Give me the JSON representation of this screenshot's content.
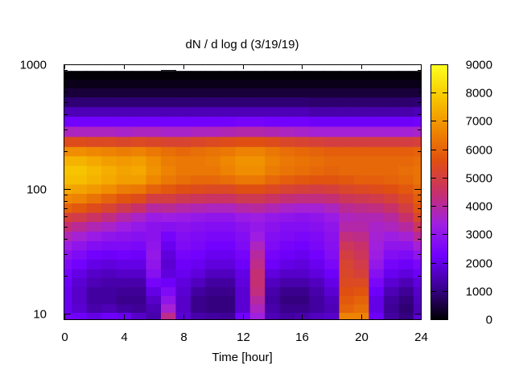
{
  "chart_data": {
    "type": "heatmap",
    "title": "dN / d log d (3/19/19)",
    "xlabel": "Time [hour]",
    "ylabel": "",
    "xlim": [
      0,
      24
    ],
    "ylim": [
      9,
      1000
    ],
    "y_scale": "log",
    "x_ticks": [
      {
        "value": 0,
        "label": "0"
      },
      {
        "value": 4,
        "label": "4"
      },
      {
        "value": 8,
        "label": "8"
      },
      {
        "value": 12,
        "label": "12"
      },
      {
        "value": 16,
        "label": "16"
      },
      {
        "value": 20,
        "label": "20"
      },
      {
        "value": 24,
        "label": "24"
      }
    ],
    "y_ticks": [
      {
        "value": 10,
        "label": "10"
      },
      {
        "value": 100,
        "label": "100"
      },
      {
        "value": 1000,
        "label": "1000"
      }
    ],
    "colorbar": {
      "range": [
        0,
        9000
      ],
      "ticks": [
        {
          "value": 0,
          "label": "0"
        },
        {
          "value": 1000,
          "label": "1000"
        },
        {
          "value": 2000,
          "label": "2000"
        },
        {
          "value": 3000,
          "label": "3000"
        },
        {
          "value": 4000,
          "label": "4000"
        },
        {
          "value": 5000,
          "label": "5000"
        },
        {
          "value": 6000,
          "label": "6000"
        },
        {
          "value": 7000,
          "label": "7000"
        },
        {
          "value": 8000,
          "label": "8000"
        },
        {
          "value": 9000,
          "label": "9000"
        }
      ],
      "palette": [
        "#000000",
        "#3b0090",
        "#7000ff",
        "#a020e0",
        "#c8306a",
        "#e05010",
        "#f08a00",
        "#f8c800",
        "#ffff20"
      ]
    },
    "size_bins": [
      9.5,
      11,
      13,
      15,
      18,
      21,
      25,
      30,
      35,
      42,
      50,
      60,
      70,
      85,
      100,
      120,
      140,
      170,
      200,
      240,
      290,
      350,
      420,
      500,
      600,
      700,
      820
    ],
    "time_hours": [
      0,
      1,
      2,
      3,
      4,
      5,
      6,
      7,
      8,
      9,
      10,
      11,
      12,
      13,
      14,
      15,
      16,
      17,
      18,
      19,
      20,
      21,
      22,
      23,
      24
    ],
    "upper_size_limit": [
      820,
      820,
      820,
      820,
      790,
      800,
      880,
      900,
      880,
      880,
      840,
      800,
      820,
      820,
      820,
      790,
      820,
      820,
      820,
      840,
      880,
      820,
      820,
      880,
      880
    ],
    "values": [
      [
        2400,
        2200,
        2000,
        2200,
        2100,
        1700,
        1400,
        4200,
        1800,
        1400,
        1300,
        1200,
        2300,
        3400,
        1500,
        1300,
        1400,
        1600,
        1700,
        6600,
        6600,
        2200,
        1300,
        1000,
        1800
      ],
      [
        2100,
        1800,
        1400,
        1500,
        1300,
        1200,
        1500,
        3500,
        1700,
        1100,
        1000,
        1000,
        1800,
        3700,
        1400,
        1100,
        1100,
        1300,
        1500,
        6000,
        6200,
        2000,
        1200,
        900,
        1500
      ],
      [
        2100,
        1700,
        1300,
        1300,
        1100,
        1100,
        1700,
        3000,
        1700,
        1100,
        1000,
        1000,
        1800,
        4000,
        1300,
        1000,
        1000,
        1300,
        1600,
        5800,
        6000,
        2000,
        1300,
        1000,
        1600
      ],
      [
        2100,
        1700,
        1300,
        1300,
        1200,
        1200,
        2000,
        2600,
        1800,
        1300,
        1100,
        1100,
        1800,
        4300,
        1400,
        1100,
        1100,
        1400,
        1800,
        5600,
        5700,
        2200,
        1500,
        1200,
        1700
      ],
      [
        2200,
        1800,
        1500,
        1400,
        1400,
        1400,
        2400,
        2200,
        1900,
        1600,
        1300,
        1300,
        1900,
        4400,
        1600,
        1400,
        1400,
        1600,
        2000,
        5400,
        5400,
        2500,
        1800,
        1500,
        1900
      ],
      [
        2400,
        2000,
        1700,
        1600,
        1700,
        1700,
        2800,
        1900,
        2100,
        1900,
        1600,
        1600,
        2000,
        4400,
        1900,
        1700,
        1700,
        1900,
        2200,
        5300,
        5100,
        2800,
        2100,
        1900,
        2200
      ],
      [
        2600,
        2300,
        2000,
        1900,
        2000,
        2000,
        3000,
        1800,
        2200,
        2100,
        1900,
        1900,
        2200,
        4200,
        2200,
        2000,
        1900,
        2100,
        2500,
        5200,
        4900,
        3100,
        2400,
        2200,
        2500
      ],
      [
        2900,
        2600,
        2300,
        2200,
        2300,
        2200,
        3100,
        1900,
        2400,
        2300,
        2100,
        2100,
        2400,
        4000,
        2400,
        2200,
        2100,
        2300,
        2700,
        5000,
        4700,
        3300,
        2700,
        2600,
        3000
      ],
      [
        3300,
        3000,
        2700,
        2600,
        2600,
        2500,
        3000,
        2100,
        2600,
        2500,
        2300,
        2300,
        2600,
        3700,
        2600,
        2400,
        2300,
        2500,
        2800,
        4700,
        4500,
        3400,
        3000,
        3000,
        3500
      ],
      [
        3800,
        3500,
        3200,
        3000,
        2900,
        2800,
        2900,
        2400,
        2700,
        2600,
        2500,
        2500,
        2700,
        3300,
        2700,
        2600,
        2500,
        2600,
        2900,
        4300,
        4200,
        3500,
        3300,
        3500,
        4100
      ],
      [
        4400,
        4100,
        3800,
        3600,
        3300,
        3100,
        2900,
        2800,
        2900,
        2800,
        2700,
        2700,
        2900,
        3100,
        2900,
        2700,
        2700,
        2800,
        3000,
        3900,
        3900,
        3600,
        3700,
        4000,
        4700
      ],
      [
        5100,
        4900,
        4600,
        4300,
        3900,
        3600,
        3200,
        3300,
        3200,
        3100,
        3000,
        3000,
        3200,
        3300,
        3100,
        3000,
        2900,
        3000,
        3200,
        3700,
        3800,
        3800,
        4000,
        4500,
        5300
      ],
      [
        6000,
        5800,
        5500,
        5200,
        4800,
        4500,
        4000,
        4100,
        3900,
        3800,
        3700,
        3700,
        3900,
        4000,
        3800,
        3600,
        3500,
        3500,
        3700,
        4100,
        4200,
        4300,
        4500,
        5000,
        5700
      ],
      [
        6700,
        6600,
        6300,
        6000,
        5700,
        5500,
        5000,
        5000,
        4800,
        4700,
        4600,
        4600,
        4800,
        4800,
        4600,
        4400,
        4300,
        4300,
        4400,
        4700,
        4800,
        4900,
        5100,
        5400,
        5900
      ],
      [
        7300,
        7200,
        7000,
        6800,
        6500,
        6400,
        6000,
        5800,
        5600,
        5500,
        5400,
        5400,
        5600,
        5600,
        5400,
        5200,
        5100,
        5000,
        5100,
        5300,
        5400,
        5500,
        5600,
        5800,
        6100
      ],
      [
        7700,
        7700,
        7500,
        7300,
        7100,
        7100,
        6700,
        6400,
        6200,
        6100,
        6100,
        6200,
        6400,
        6400,
        6100,
        5900,
        5800,
        5700,
        5700,
        5800,
        5900,
        5900,
        6000,
        6100,
        6300
      ],
      [
        7800,
        7800,
        7600,
        7400,
        7200,
        7300,
        6900,
        6600,
        6400,
        6400,
        6400,
        6600,
        6800,
        6800,
        6500,
        6300,
        6200,
        6100,
        6000,
        6100,
        6100,
        6100,
        6100,
        6200,
        6300
      ],
      [
        7500,
        7500,
        7300,
        7100,
        7000,
        7100,
        6800,
        6500,
        6400,
        6400,
        6500,
        6700,
        6900,
        6900,
        6600,
        6400,
        6300,
        6200,
        6100,
        6100,
        6100,
        6100,
        6100,
        6100,
        6200
      ],
      [
        6800,
        6800,
        6700,
        6600,
        6500,
        6600,
        6400,
        6200,
        6100,
        6200,
        6300,
        6400,
        6600,
        6600,
        6400,
        6200,
        6100,
        6000,
        5900,
        5900,
        5900,
        5900,
        5900,
        5900,
        6000
      ],
      [
        5500,
        5500,
        5400,
        5400,
        5300,
        5400,
        5300,
        5200,
        5200,
        5300,
        5400,
        5500,
        5600,
        5600,
        5500,
        5300,
        5200,
        5100,
        5000,
        5000,
        5000,
        5000,
        5000,
        5000,
        5100
      ],
      [
        3700,
        3700,
        3700,
        3700,
        3600,
        3700,
        3700,
        3600,
        3600,
        3700,
        3700,
        3800,
        3900,
        3900,
        3800,
        3700,
        3600,
        3500,
        3500,
        3500,
        3500,
        3500,
        3500,
        3500,
        3600
      ],
      [
        2300,
        2300,
        2300,
        2300,
        2300,
        2300,
        2300,
        2300,
        2300,
        2300,
        2300,
        2300,
        2400,
        2400,
        2300,
        2300,
        2300,
        2200,
        2200,
        2200,
        2200,
        2200,
        2200,
        2200,
        2300
      ],
      [
        1500,
        1500,
        1500,
        1500,
        1500,
        1500,
        1500,
        1500,
        1500,
        1500,
        1500,
        1500,
        1500,
        1500,
        1500,
        1500,
        1500,
        1400,
        1400,
        1400,
        1400,
        1400,
        1400,
        1400,
        1500
      ],
      [
        900,
        900,
        900,
        900,
        900,
        900,
        900,
        900,
        900,
        900,
        900,
        900,
        900,
        900,
        900,
        900,
        900,
        850,
        850,
        850,
        850,
        850,
        850,
        850,
        900
      ],
      [
        450,
        450,
        450,
        450,
        450,
        450,
        450,
        450,
        450,
        450,
        450,
        450,
        450,
        450,
        450,
        450,
        450,
        450,
        450,
        450,
        450,
        450,
        450,
        450,
        450
      ],
      [
        200,
        200,
        200,
        200,
        200,
        200,
        200,
        200,
        200,
        200,
        200,
        200,
        200,
        200,
        200,
        200,
        200,
        200,
        200,
        200,
        200,
        200,
        200,
        200,
        200
      ],
      [
        60,
        60,
        60,
        60,
        60,
        60,
        60,
        60,
        60,
        60,
        60,
        60,
        60,
        60,
        60,
        60,
        60,
        60,
        60,
        60,
        60,
        60,
        60,
        60,
        60
      ]
    ]
  }
}
